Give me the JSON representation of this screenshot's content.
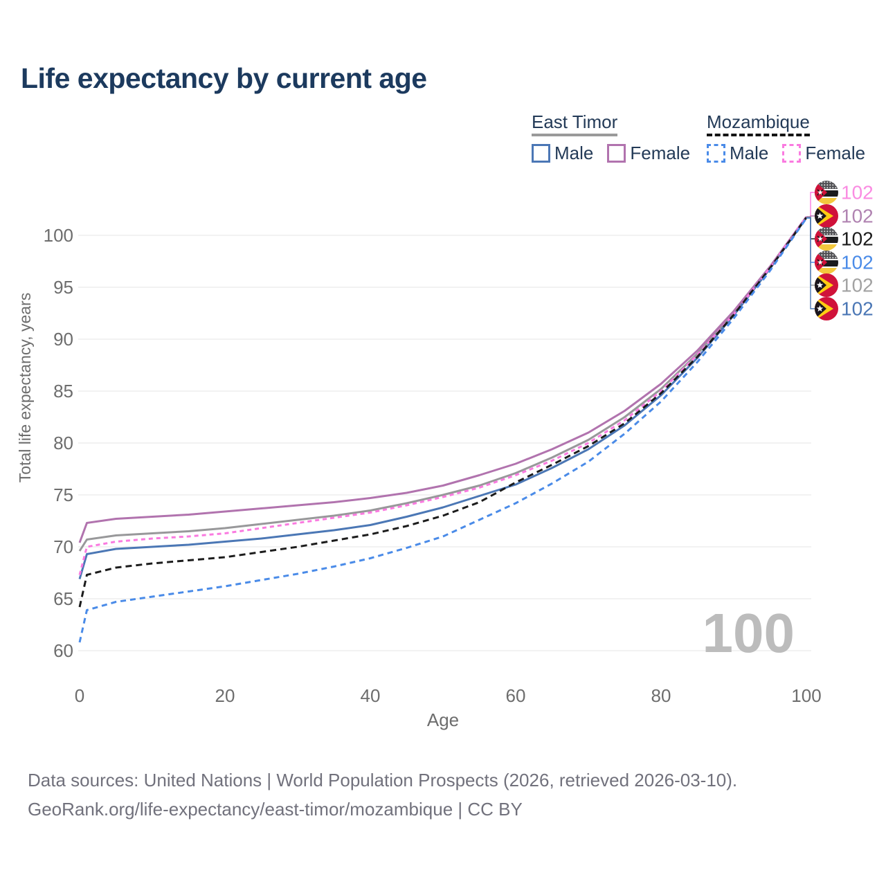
{
  "header": {
    "title": "Life expectancy by current age"
  },
  "legend": {
    "groups": [
      {
        "title": "East Timor",
        "underline_style": "solid",
        "underline_color": "#9a9a9a",
        "items": [
          {
            "label": "Male",
            "color": "#4b77b5",
            "dashed": false
          },
          {
            "label": "Female",
            "color": "#b173ae",
            "dashed": false
          }
        ]
      },
      {
        "title": "Mozambique",
        "underline_style": "dashed",
        "underline_color": "#141414",
        "items": [
          {
            "label": "Male",
            "color": "#4a8be8",
            "dashed": true
          },
          {
            "label": "Female",
            "color": "#fa7ae0",
            "dashed": true
          }
        ]
      }
    ]
  },
  "chart_data": {
    "type": "line",
    "title": "Life expectancy by current age",
    "xlabel": "Age",
    "ylabel": "Total life expectancy, years",
    "xlim": [
      0,
      100
    ],
    "ylim": [
      60,
      102.5
    ],
    "xticks": [
      0,
      20,
      40,
      60,
      80,
      100
    ],
    "yticks": [
      60,
      65,
      70,
      75,
      80,
      85,
      90,
      95,
      100
    ],
    "grid": "horizontal",
    "grid_color": "#eaeaea",
    "tick_color": "#6d6d6d",
    "watermark": "100",
    "watermark_color": "#bcbcbc",
    "series": [
      {
        "key": "et_total",
        "name": "East Timor — Total",
        "country": "east-timor",
        "color": "#98989a",
        "dash": "",
        "points": [
          [
            0,
            69.6
          ],
          [
            1,
            70.7
          ],
          [
            5,
            71.1
          ],
          [
            10,
            71.3
          ],
          [
            15,
            71.5
          ],
          [
            20,
            71.8
          ],
          [
            25,
            72.2
          ],
          [
            30,
            72.6
          ],
          [
            35,
            73.0
          ],
          [
            40,
            73.5
          ],
          [
            45,
            74.2
          ],
          [
            50,
            75.0
          ],
          [
            55,
            75.9
          ],
          [
            60,
            77.1
          ],
          [
            65,
            78.6
          ],
          [
            70,
            80.3
          ],
          [
            75,
            82.5
          ],
          [
            80,
            85.2
          ],
          [
            85,
            88.6
          ],
          [
            90,
            92.5
          ],
          [
            95,
            96.9
          ],
          [
            100,
            101.75
          ]
        ]
      },
      {
        "key": "et_male",
        "name": "East Timor — Male",
        "country": "east-timor",
        "color": "#4b77b5",
        "dash": "",
        "points": [
          [
            0,
            66.9
          ],
          [
            1,
            69.3
          ],
          [
            5,
            69.8
          ],
          [
            10,
            70.0
          ],
          [
            15,
            70.2
          ],
          [
            20,
            70.5
          ],
          [
            25,
            70.8
          ],
          [
            30,
            71.2
          ],
          [
            35,
            71.6
          ],
          [
            40,
            72.1
          ],
          [
            45,
            72.9
          ],
          [
            50,
            73.8
          ],
          [
            55,
            74.9
          ],
          [
            60,
            76.0
          ],
          [
            65,
            77.6
          ],
          [
            70,
            79.4
          ],
          [
            75,
            81.7
          ],
          [
            80,
            84.6
          ],
          [
            85,
            88.2
          ],
          [
            90,
            92.3
          ],
          [
            95,
            96.8
          ],
          [
            100,
            101.7
          ]
        ]
      },
      {
        "key": "et_female",
        "name": "East Timor — Female",
        "country": "east-timor",
        "color": "#b173ae",
        "dash": "",
        "points": [
          [
            0,
            70.4
          ],
          [
            1,
            72.3
          ],
          [
            5,
            72.7
          ],
          [
            10,
            72.9
          ],
          [
            15,
            73.1
          ],
          [
            20,
            73.4
          ],
          [
            25,
            73.7
          ],
          [
            30,
            74.0
          ],
          [
            35,
            74.3
          ],
          [
            40,
            74.7
          ],
          [
            45,
            75.2
          ],
          [
            50,
            75.9
          ],
          [
            55,
            76.9
          ],
          [
            60,
            78.0
          ],
          [
            65,
            79.4
          ],
          [
            70,
            81.0
          ],
          [
            75,
            83.1
          ],
          [
            80,
            85.7
          ],
          [
            85,
            88.9
          ],
          [
            90,
            92.7
          ],
          [
            95,
            97.0
          ],
          [
            100,
            101.8
          ]
        ]
      },
      {
        "key": "mz_female",
        "name": "Mozambique — Female",
        "country": "mozambique",
        "color": "#fa7ae0",
        "dash": "6 5",
        "points": [
          [
            0,
            67.3
          ],
          [
            1,
            70.0
          ],
          [
            5,
            70.5
          ],
          [
            10,
            70.8
          ],
          [
            15,
            71.0
          ],
          [
            20,
            71.3
          ],
          [
            25,
            71.8
          ],
          [
            30,
            72.3
          ],
          [
            35,
            72.8
          ],
          [
            40,
            73.3
          ],
          [
            45,
            74.0
          ],
          [
            50,
            74.8
          ],
          [
            55,
            75.7
          ],
          [
            60,
            76.9
          ],
          [
            65,
            78.3
          ],
          [
            70,
            80.0
          ],
          [
            75,
            82.2
          ],
          [
            80,
            85.0
          ],
          [
            85,
            88.5
          ],
          [
            90,
            92.4
          ],
          [
            95,
            96.9
          ],
          [
            100,
            101.78
          ]
        ]
      },
      {
        "key": "mz_total",
        "name": "Mozambique — Total",
        "country": "mozambique",
        "color": "#1c1c1c",
        "dash": "9 6",
        "points": [
          [
            0,
            64.2
          ],
          [
            1,
            67.3
          ],
          [
            5,
            68.0
          ],
          [
            10,
            68.4
          ],
          [
            15,
            68.7
          ],
          [
            20,
            69.0
          ],
          [
            25,
            69.5
          ],
          [
            30,
            70.0
          ],
          [
            35,
            70.6
          ],
          [
            40,
            71.2
          ],
          [
            45,
            72.0
          ],
          [
            50,
            73.0
          ],
          [
            55,
            74.3
          ],
          [
            60,
            76.2
          ],
          [
            65,
            77.9
          ],
          [
            70,
            79.7
          ],
          [
            75,
            81.9
          ],
          [
            80,
            84.8
          ],
          [
            85,
            88.3
          ],
          [
            90,
            92.35
          ],
          [
            95,
            96.85
          ],
          [
            100,
            101.72
          ]
        ]
      },
      {
        "key": "mz_male",
        "name": "Mozambique — Male",
        "country": "mozambique",
        "color": "#4a8be8",
        "dash": "8 6",
        "points": [
          [
            0,
            60.8
          ],
          [
            1,
            63.9
          ],
          [
            5,
            64.7
          ],
          [
            10,
            65.2
          ],
          [
            15,
            65.7
          ],
          [
            20,
            66.2
          ],
          [
            25,
            66.8
          ],
          [
            30,
            67.4
          ],
          [
            35,
            68.1
          ],
          [
            40,
            68.9
          ],
          [
            45,
            69.9
          ],
          [
            50,
            71.0
          ],
          [
            55,
            72.6
          ],
          [
            60,
            74.2
          ],
          [
            65,
            76.1
          ],
          [
            70,
            78.2
          ],
          [
            75,
            80.9
          ],
          [
            80,
            84.0
          ],
          [
            85,
            87.8
          ],
          [
            90,
            92.0
          ],
          [
            95,
            96.6
          ],
          [
            100,
            101.65
          ]
        ]
      }
    ],
    "end_labels": [
      {
        "series": "mz_female",
        "flag": "mozambique",
        "label": "102",
        "color": "#fa8ce2"
      },
      {
        "series": "et_female",
        "flag": "east-timor",
        "label": "102",
        "color": "#b083b1"
      },
      {
        "series": "mz_total",
        "flag": "mozambique",
        "label": "102",
        "color": "#1c1c1c"
      },
      {
        "series": "mz_male",
        "flag": "mozambique",
        "label": "102",
        "color": "#4a8be8"
      },
      {
        "series": "et_total",
        "flag": "east-timor",
        "label": "102",
        "color": "#a2a2a2"
      },
      {
        "series": "et_male",
        "flag": "east-timor",
        "label": "102",
        "color": "#4b77b5"
      }
    ],
    "flag_colors": {
      "east_timor_red": "#d0123a",
      "east_timor_yellow": "#ffcd13",
      "east_timor_black": "#1b161e",
      "mozambique_yellow": "#f3c83d",
      "mozambique_black": "#1b1b1d",
      "mozambique_red": "#d0123a",
      "mozambique_dark_stripe": "#515155"
    }
  },
  "footer": {
    "line1": "Data sources: United Nations | World Population Prospects (2026, retrieved 2026-03-10).",
    "line2": "GeoRank.org/life-expectancy/east-timor/mozambique | CC BY"
  }
}
